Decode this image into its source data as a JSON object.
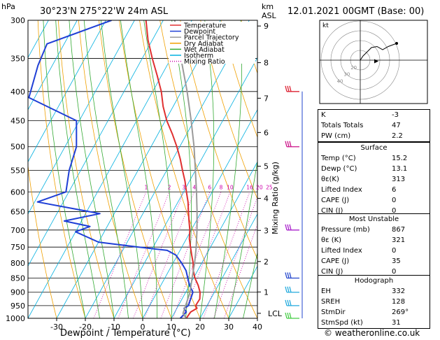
{
  "header": {
    "hpa_label": "hPa",
    "location": "30°23'N  275°22'W  24m  ASL",
    "km_label": "km",
    "asl_label": "ASL",
    "datetime": "12.01.2021  00GMT  (Base: 00)"
  },
  "legend": [
    {
      "label": "Temperature",
      "color": "#e03030",
      "style": "solid"
    },
    {
      "label": "Dewpoint",
      "color": "#1f3fd6",
      "style": "solid"
    },
    {
      "label": "Parcel Trajectory",
      "color": "#9a9a9a",
      "style": "solid"
    },
    {
      "label": "Dry Adiabat",
      "color": "#f0a000",
      "style": "solid"
    },
    {
      "label": "Wet Adiabat",
      "color": "#33aa33",
      "style": "solid"
    },
    {
      "label": "Isotherm",
      "color": "#00b0e0",
      "style": "solid"
    },
    {
      "label": "Mixing Ratio",
      "color": "#cc00aa",
      "style": "dotted"
    }
  ],
  "chart_data": {
    "type": "line",
    "xlabel": "Dewpoint / Temperature (°C)",
    "ylabel": "hPa",
    "x_ticks": [
      -30,
      -20,
      -10,
      0,
      10,
      20,
      30,
      40
    ],
    "xlim": [
      -40,
      40
    ],
    "y_ticks": [
      300,
      350,
      400,
      450,
      500,
      550,
      600,
      650,
      700,
      750,
      800,
      850,
      900,
      950,
      1000
    ],
    "ylim": [
      1000,
      300
    ],
    "y_scale": "log",
    "km_axis_label": "Mixing Ratio (g/kg)",
    "km_ticks": [
      {
        "label": "9",
        "p": 307
      },
      {
        "label": "8",
        "p": 356
      },
      {
        "label": "7",
        "p": 411
      },
      {
        "label": "6",
        "p": 472
      },
      {
        "label": "5",
        "p": 541
      },
      {
        "label": "4",
        "p": 616
      },
      {
        "label": "3",
        "p": 701
      },
      {
        "label": "2",
        "p": 795
      },
      {
        "label": "1",
        "p": 899
      },
      {
        "label": "LCL",
        "p": 980
      }
    ],
    "mixing_ratio_labels": [
      "1",
      "2",
      "3",
      "4",
      "6",
      "8",
      "10",
      "16",
      "20",
      "25"
    ],
    "series": [
      {
        "name": "Temperature",
        "color": "#e03030",
        "points": [
          [
            15.2,
            1000
          ],
          [
            15.5,
            975
          ],
          [
            17,
            960
          ],
          [
            16,
            950
          ],
          [
            16.2,
            925
          ],
          [
            15,
            900
          ],
          [
            13,
            875
          ],
          [
            10.5,
            850
          ],
          [
            8.5,
            825
          ],
          [
            7,
            800
          ],
          [
            5,
            775
          ],
          [
            3,
            750
          ],
          [
            1,
            725
          ],
          [
            -0.5,
            700
          ],
          [
            -2.5,
            675
          ],
          [
            -4.5,
            650
          ],
          [
            -6.5,
            625
          ],
          [
            -9,
            600
          ],
          [
            -11.5,
            575
          ],
          [
            -14.5,
            550
          ],
          [
            -17.5,
            525
          ],
          [
            -21,
            500
          ],
          [
            -25,
            475
          ],
          [
            -29.5,
            450
          ],
          [
            -33.5,
            425
          ],
          [
            -37,
            400
          ],
          [
            -41.5,
            375
          ],
          [
            -46.5,
            350
          ],
          [
            -51.5,
            325
          ],
          [
            -56,
            300
          ]
        ]
      },
      {
        "name": "Dewpoint",
        "color": "#1f3fd6",
        "points": [
          [
            13.1,
            1000
          ],
          [
            14,
            975
          ],
          [
            12.5,
            960
          ],
          [
            13.5,
            950
          ],
          [
            13,
            925
          ],
          [
            12.5,
            900
          ],
          [
            10,
            875
          ],
          [
            8,
            850
          ],
          [
            6,
            825
          ],
          [
            3,
            800
          ],
          [
            -0.5,
            775
          ],
          [
            -4.5,
            760
          ],
          [
            -15,
            750
          ],
          [
            -30,
            735
          ],
          [
            -40,
            705
          ],
          [
            -36,
            690
          ],
          [
            -46,
            675
          ],
          [
            -35,
            655
          ],
          [
            -59,
            625
          ],
          [
            -51,
            600
          ],
          [
            -54,
            550
          ],
          [
            -56,
            500
          ],
          [
            -61,
            450
          ],
          [
            -82,
            410
          ],
          [
            -85,
            360
          ],
          [
            -86,
            330
          ],
          [
            -68,
            300
          ]
        ]
      },
      {
        "name": "Parcel Trajectory",
        "color": "#9a9a9a",
        "points": [
          [
            15.2,
            1000
          ],
          [
            13.1,
            980
          ],
          [
            11.5,
            900
          ],
          [
            9.5,
            850
          ],
          [
            7.5,
            800
          ],
          [
            5,
            750
          ],
          [
            2,
            700
          ],
          [
            -1.5,
            650
          ],
          [
            -5.5,
            600
          ],
          [
            -10,
            550
          ],
          [
            -15,
            500
          ],
          [
            -21,
            450
          ],
          [
            -28,
            400
          ],
          [
            -36.5,
            350
          ],
          [
            -46,
            300
          ]
        ]
      }
    ]
  },
  "wind_barbs": [
    {
      "p": 1000,
      "color": "#44cc44"
    },
    {
      "p": 950,
      "color": "#22aadd"
    },
    {
      "p": 900,
      "color": "#22aadd"
    },
    {
      "p": 850,
      "color": "#2244cc"
    },
    {
      "p": 700,
      "color": "#aa22cc"
    },
    {
      "p": 500,
      "color": "#cc1188"
    },
    {
      "p": 400,
      "color": "#dd2233"
    }
  ],
  "hodograph": {
    "label": "kt",
    "ring_labels": [
      "20",
      "30",
      "40"
    ],
    "trace": [
      [
        0,
        0
      ],
      [
        2,
        4
      ],
      [
        5,
        8
      ],
      [
        8,
        12
      ],
      [
        12,
        13
      ],
      [
        16,
        10
      ],
      [
        20,
        13
      ],
      [
        26,
        16
      ]
    ],
    "storm_motion": [
      10,
      -1
    ]
  },
  "indices": [
    {
      "label": "K",
      "value": "-3"
    },
    {
      "label": "Totals Totals",
      "value": "47"
    },
    {
      "label": "PW (cm)",
      "value": "2.2"
    }
  ],
  "surface": {
    "title": "Surface",
    "rows": [
      {
        "label": "Temp (°C)",
        "value": "15.2"
      },
      {
        "label": "Dewp (°C)",
        "value": "13.1"
      },
      {
        "label": "θε(K)",
        "value": "313"
      },
      {
        "label": "Lifted Index",
        "value": "6"
      },
      {
        "label": "CAPE (J)",
        "value": "0"
      },
      {
        "label": "CIN (J)",
        "value": "0"
      }
    ]
  },
  "most_unstable": {
    "title": "Most Unstable",
    "rows": [
      {
        "label": "Pressure (mb)",
        "value": "867"
      },
      {
        "label": "θε (K)",
        "value": "321"
      },
      {
        "label": "Lifted Index",
        "value": "0"
      },
      {
        "label": "CAPE (J)",
        "value": "35"
      },
      {
        "label": "CIN (J)",
        "value": "0"
      }
    ]
  },
  "hodograph_table": {
    "title": "Hodograph",
    "rows": [
      {
        "label": "EH",
        "value": "332"
      },
      {
        "label": "SREH",
        "value": "128"
      },
      {
        "label": "StmDir",
        "value": "269°"
      },
      {
        "label": "StmSpd (kt)",
        "value": "31"
      }
    ]
  },
  "copyright": "© weatheronline.co.uk"
}
